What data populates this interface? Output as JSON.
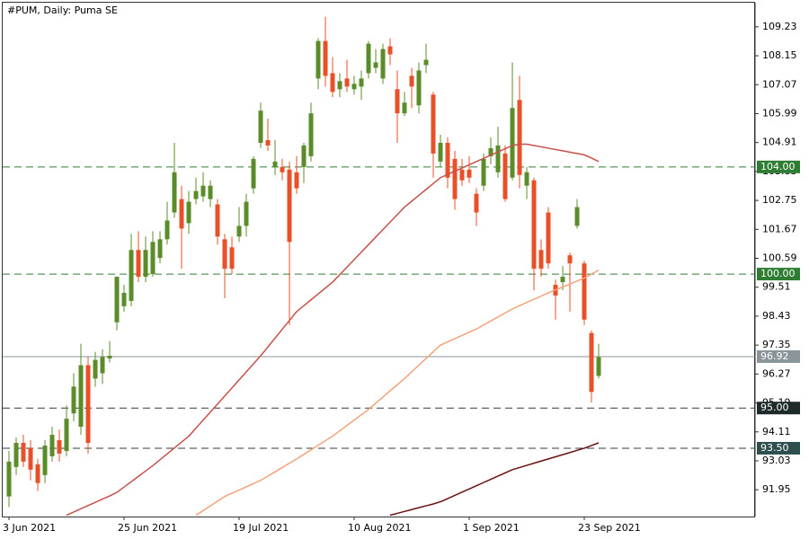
{
  "chart_data": {
    "type": "candlestick",
    "title": "#PUM, Daily:  Puma SE",
    "categories": [
      "3 Jun 2021",
      null,
      null,
      null,
      null,
      null,
      null,
      null,
      null,
      null,
      null,
      null,
      null,
      null,
      null,
      null,
      "25 Jun 2021",
      null,
      null,
      null,
      null,
      null,
      null,
      null,
      null,
      null,
      null,
      null,
      null,
      null,
      null,
      null,
      "19 Jul 2021",
      null,
      null,
      null,
      null,
      null,
      null,
      null,
      null,
      null,
      null,
      null,
      null,
      null,
      null,
      null,
      "10 Aug 2021",
      null,
      null,
      null,
      null,
      null,
      null,
      null,
      null,
      null,
      null,
      null,
      null,
      null,
      null,
      null,
      "1 Sep 2021",
      null,
      null,
      null,
      null,
      null,
      null,
      null,
      null,
      null,
      null,
      null,
      null,
      null,
      null,
      null,
      "23 Sep 2021",
      null,
      null
    ],
    "open": [
      91.7,
      92.8,
      93.7,
      93.5,
      92.9,
      92.5,
      93.2,
      93.8,
      93.4,
      94.8,
      94.3,
      96.6,
      96.1,
      96.3,
      96.85,
      98.2,
      98.8,
      99.0,
      100.9,
      99.9,
      100.0,
      100.6,
      101.3,
      102.3,
      102.8,
      101.9,
      102.8,
      102.9,
      102.8,
      102.6,
      101.3,
      101.0,
      101.4,
      101.8,
      103.2,
      104.9,
      105.0,
      104.0,
      104.0,
      103.9,
      103.8,
      104.0,
      104.4,
      107.3,
      108.7,
      107.5,
      106.9,
      107.3,
      106.9,
      107.0,
      107.5,
      107.7,
      107.3,
      108.5,
      106.9,
      106.0,
      107.4,
      106.3,
      107.8,
      106.7,
      104.2,
      104.9,
      104.3,
      103.9,
      103.9,
      103.0,
      103.3,
      104.4,
      103.8,
      104.5,
      103.6,
      106.5,
      103.3,
      103.5,
      100.9,
      102.3,
      99.6,
      99.7,
      100.7,
      101.8,
      100.4,
      97.8,
      96.2
    ],
    "high": [
      93.4,
      93.9,
      94.0,
      93.8,
      93.1,
      93.8,
      94.3,
      94.2,
      95.1,
      96.3,
      97.4,
      96.9,
      97.1,
      97.2,
      97.5,
      99.9,
      99.6,
      101.5,
      101.6,
      101.4,
      101.6,
      101.6,
      102.7,
      104.9,
      103.3,
      103.1,
      103.6,
      103.8,
      103.5,
      102.8,
      101.5,
      101.4,
      102.5,
      103.0,
      104.4,
      106.4,
      105.8,
      105.0,
      104.3,
      104.2,
      104.4,
      104.9,
      106.4,
      108.8,
      109.6,
      108.1,
      107.5,
      108.0,
      107.4,
      107.6,
      108.7,
      108.4,
      108.6,
      108.8,
      107.6,
      106.8,
      107.7,
      107.9,
      108.6,
      106.8,
      105.2,
      105.1,
      104.6,
      104.3,
      104.4,
      103.2,
      104.5,
      105.1,
      105.5,
      104.8,
      107.9,
      107.4,
      104.0,
      103.6,
      101.3,
      102.5,
      99.8,
      100.3,
      100.8,
      102.8,
      100.5,
      97.9,
      97.4
    ],
    "low": [
      91.3,
      92.5,
      92.8,
      92.3,
      91.9,
      92.2,
      93.0,
      93.0,
      93.2,
      94.5,
      94.0,
      93.3,
      95.8,
      95.9,
      96.7,
      97.9,
      98.6,
      98.8,
      99.7,
      99.7,
      99.9,
      100.4,
      101.1,
      102.1,
      100.2,
      101.5,
      102.6,
      102.7,
      102.5,
      101.1,
      99.1,
      100.0,
      101.2,
      101.4,
      103.0,
      104.7,
      104.6,
      103.7,
      103.5,
      98.1,
      103.0,
      103.4,
      104.2,
      106.9,
      107.0,
      106.6,
      106.6,
      106.8,
      106.7,
      106.5,
      107.3,
      107.5,
      107.1,
      107.8,
      104.9,
      105.9,
      106.2,
      106.0,
      107.5,
      103.6,
      104.0,
      103.2,
      102.4,
      103.3,
      103.4,
      101.8,
      103.1,
      104.1,
      103.6,
      102.7,
      103.5,
      103.2,
      102.8,
      99.4,
      99.9,
      100.2,
      98.3,
      99.4,
      98.6,
      101.7,
      98.1,
      95.2,
      96.1
    ],
    "close": [
      93.0,
      93.7,
      93.0,
      92.7,
      92.2,
      93.6,
      94.0,
      93.3,
      94.6,
      95.8,
      96.6,
      93.7,
      96.8,
      96.9,
      96.95,
      99.9,
      99.3,
      100.9,
      99.9,
      100.9,
      101.2,
      101.3,
      102.0,
      103.8,
      101.7,
      102.7,
      103.1,
      103.3,
      103.3,
      101.4,
      100.2,
      100.2,
      101.8,
      102.7,
      104.3,
      106.1,
      104.8,
      104.2,
      103.8,
      101.2,
      103.2,
      104.8,
      106.0,
      108.7,
      107.4,
      106.8,
      107.2,
      107.0,
      107.1,
      107.3,
      108.6,
      107.9,
      108.4,
      108.2,
      106.0,
      106.4,
      107.0,
      107.6,
      108.0,
      104.5,
      104.9,
      103.6,
      102.8,
      103.5,
      103.6,
      102.3,
      104.3,
      104.7,
      104.8,
      102.8,
      106.2,
      103.7,
      103.8,
      100.2,
      100.2,
      100.4,
      99.2,
      99.9,
      100.4,
      102.5,
      98.3,
      95.6,
      96.9
    ],
    "up_color": "#5b8c2a",
    "down_color": "#e8502a",
    "moving_averages": [
      {
        "color": "#c8504a",
        "values": [
          null,
          null,
          null,
          null,
          null,
          null,
          null,
          null,
          91.0,
          91.12,
          91.24,
          91.36,
          91.48,
          91.6,
          91.72,
          91.85,
          92.05,
          92.25,
          92.45,
          92.65,
          92.85,
          93.07,
          93.29,
          93.51,
          93.73,
          93.95,
          94.25,
          94.55,
          94.85,
          95.15,
          95.45,
          95.75,
          96.05,
          96.35,
          96.65,
          96.95,
          97.28,
          97.61,
          97.94,
          98.27,
          98.6,
          98.82,
          99.04,
          99.26,
          99.48,
          99.7,
          99.98,
          100.26,
          100.54,
          100.82,
          101.1,
          101.38,
          101.66,
          101.94,
          102.22,
          102.5,
          102.72,
          102.94,
          103.16,
          103.38,
          103.6,
          103.72,
          103.84,
          103.96,
          104.08,
          104.2,
          104.32,
          104.44,
          104.56,
          104.68,
          104.8,
          104.85,
          104.85,
          104.8,
          104.75,
          104.7,
          104.65,
          104.6,
          104.55,
          104.5,
          104.45,
          104.33,
          104.2
        ]
      },
      {
        "color": "#f4a27a",
        "values": [
          null,
          null,
          null,
          null,
          null,
          null,
          null,
          null,
          null,
          null,
          null,
          null,
          null,
          null,
          null,
          null,
          null,
          null,
          null,
          null,
          null,
          null,
          null,
          null,
          null,
          null,
          91.0,
          91.17,
          91.35,
          91.52,
          91.7,
          91.82,
          91.94,
          92.06,
          92.18,
          92.3,
          92.46,
          92.62,
          92.78,
          92.94,
          93.1,
          93.27,
          93.44,
          93.61,
          93.78,
          93.95,
          94.15,
          94.35,
          94.55,
          94.75,
          94.95,
          95.18,
          95.41,
          95.64,
          95.87,
          96.1,
          96.35,
          96.6,
          96.85,
          97.1,
          97.35,
          97.47,
          97.59,
          97.71,
          97.83,
          97.95,
          98.1,
          98.25,
          98.4,
          98.55,
          98.7,
          98.82,
          98.94,
          99.06,
          99.18,
          99.3,
          99.41,
          99.52,
          99.63,
          99.74,
          99.85,
          100.0,
          100.15
        ]
      },
      {
        "color": "#6b0f0f",
        "values": [
          null,
          null,
          null,
          null,
          null,
          null,
          null,
          null,
          null,
          null,
          null,
          null,
          null,
          null,
          null,
          null,
          null,
          null,
          null,
          null,
          null,
          null,
          null,
          null,
          null,
          null,
          null,
          null,
          null,
          null,
          null,
          null,
          null,
          null,
          null,
          null,
          null,
          null,
          null,
          null,
          null,
          null,
          null,
          null,
          null,
          null,
          null,
          null,
          null,
          null,
          null,
          null,
          null,
          91.0,
          91.07,
          91.14,
          91.21,
          91.28,
          91.35,
          91.42,
          91.5,
          91.62,
          91.74,
          91.86,
          91.98,
          92.1,
          92.22,
          92.34,
          92.46,
          92.58,
          92.7,
          92.78,
          92.86,
          92.94,
          93.02,
          93.1,
          93.18,
          93.26,
          93.34,
          93.42,
          93.5,
          93.6,
          93.7
        ]
      }
    ],
    "levels": [
      {
        "value": 104,
        "label": "104.00",
        "color": "#2e7d32",
        "label_bg": "#2e7d32",
        "dash": true
      },
      {
        "value": 100,
        "label": "100.00",
        "color": "#2e7d32",
        "label_bg": "#2e7d32",
        "dash": true
      },
      {
        "value": 96.92,
        "label": "96.92",
        "color": "#8a9499",
        "label_bg": "#8a9499",
        "dash": false
      },
      {
        "value": 95,
        "label": "95.00",
        "color": "#2f3f3a",
        "label_bg": "#1f2a2a",
        "dash": true
      },
      {
        "value": 93.5,
        "label": "93.50",
        "color": "#2f3f3a",
        "label_bg": "#2f4f4f",
        "dash": true
      }
    ],
    "ylim": [
      90.95,
      110.13
    ],
    "yticks": [
      109.23,
      108.15,
      107.07,
      105.99,
      104.91,
      103.83,
      102.75,
      101.67,
      100.59,
      99.51,
      98.43,
      97.35,
      96.27,
      95.19,
      94.11,
      93.03,
      91.95
    ]
  }
}
